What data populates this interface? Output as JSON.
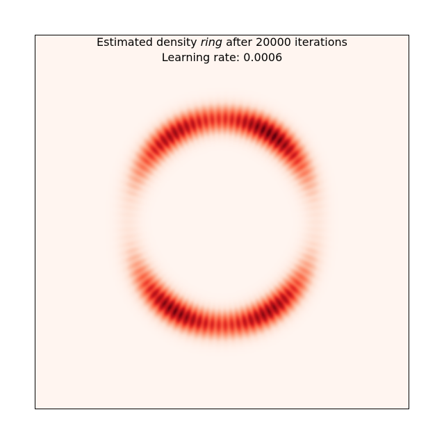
{
  "chart_data": {
    "type": "heatmap",
    "title": {
      "prefix": "Estimated density ",
      "emphasis": "ring",
      "suffix": " after 20000 iterations"
    },
    "subtitle": "Learning rate: 0.0006",
    "colormap": "Reds",
    "background_color": "#fff5f0",
    "peak_color": "#67000d",
    "x_ticks": [],
    "y_ticks": [],
    "grid": false,
    "legend": "none",
    "distribution": {
      "shape": "ring",
      "center": [
        0,
        0
      ],
      "radius_x": 0.5,
      "radius_y": 0.55,
      "ring_width": 0.045,
      "high_density_lobes": [
        {
          "name": "upper-left",
          "angle_deg": 122,
          "intensity": 0.85
        },
        {
          "name": "upper-right",
          "angle_deg": 58,
          "intensity": 1.0
        },
        {
          "name": "lower-left",
          "angle_deg": 238,
          "intensity": 0.95
        },
        {
          "name": "lower-right",
          "angle_deg": 302,
          "intensity": 0.9
        }
      ],
      "lobe_angular_width_deg": 22
    }
  }
}
